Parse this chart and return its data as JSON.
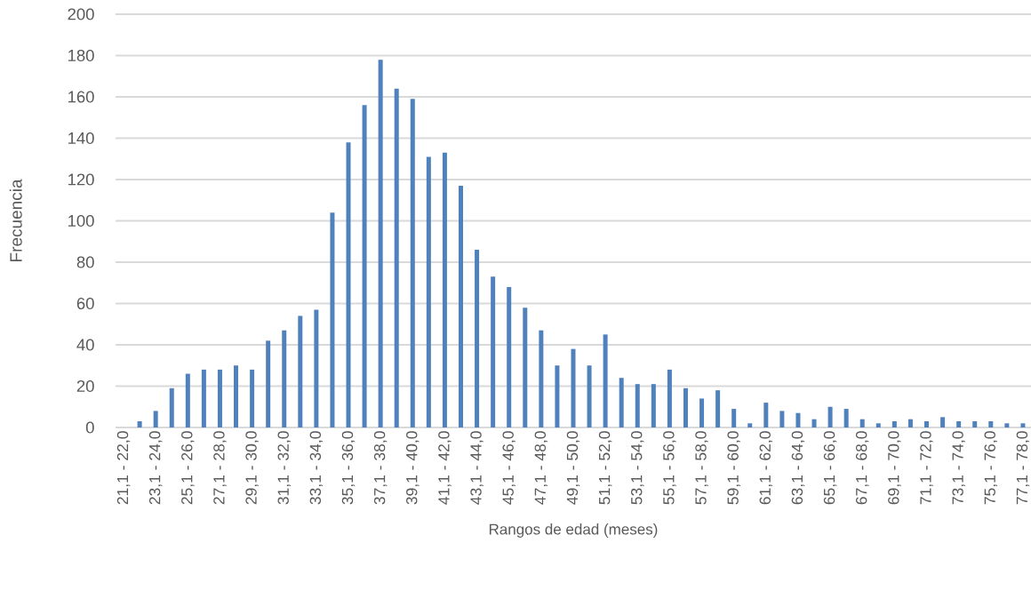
{
  "chart_data": {
    "type": "bar",
    "xlabel": "Rangos de edad (meses)",
    "ylabel": "Frecuencia",
    "categories": [
      "21,1 - 22,0",
      null,
      "23,1 - 24,0",
      null,
      "25,1 - 26,0",
      null,
      "27,1 - 28,0",
      null,
      "29,1 - 30,0",
      null,
      "31,1 - 32,0",
      null,
      "33,1 - 34,0",
      null,
      "35,1 - 36,0",
      null,
      "37,1 - 38,0",
      null,
      "39,1 - 40,0",
      null,
      "41,1 - 42,0",
      null,
      "43,1 - 44,0",
      null,
      "45,1 - 46,0",
      null,
      "47,1 - 48,0",
      null,
      "49,1 - 50,0",
      null,
      "51,1 - 52,0",
      null,
      "53,1 - 54,0",
      null,
      "55,1 - 56,0",
      null,
      "57,1 - 58,0",
      null,
      "59,1 - 60,0",
      null,
      "61,1 - 62,0",
      null,
      "63,1 - 64,0",
      null,
      "65,1 - 66,0",
      null,
      "67,1 - 68,0",
      null,
      "69,1 - 70,0",
      null,
      "71,1 - 72,0",
      null,
      "73,1 - 74,0",
      null,
      "75,1 - 76,0",
      null,
      "77,1 - 78,0"
    ],
    "values": [
      0,
      3,
      8,
      19,
      26,
      28,
      28,
      30,
      28,
      42,
      47,
      54,
      57,
      104,
      138,
      156,
      178,
      164,
      159,
      131,
      133,
      117,
      86,
      73,
      68,
      58,
      47,
      30,
      38,
      30,
      45,
      24,
      21,
      21,
      28,
      19,
      14,
      18,
      9,
      2,
      12,
      8,
      7,
      4,
      10,
      9,
      4,
      2,
      3,
      4,
      3,
      5,
      3,
      3,
      3,
      2,
      2
    ],
    "color": "#4f81bd",
    "ylim": [
      0,
      200
    ],
    "yticks": [
      0,
      20,
      40,
      60,
      80,
      100,
      120,
      140,
      160,
      180,
      200
    ],
    "grid": "y"
  }
}
